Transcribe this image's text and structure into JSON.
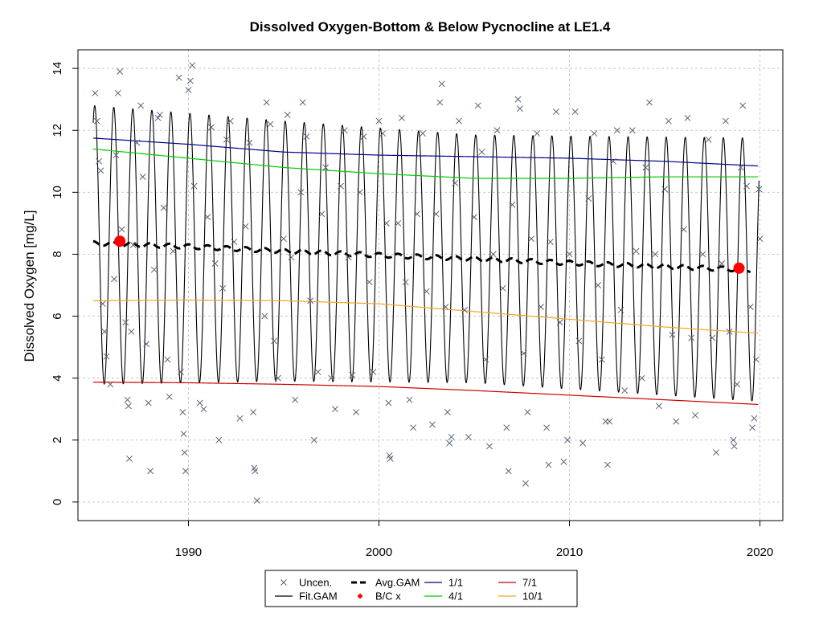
{
  "chart_data": {
    "type": "line",
    "title": "Dissolved Oxygen-Bottom & Below Pycnocline at LE1.4",
    "xlabel": "",
    "ylabel": "Dissolved Oxygen [mg/L]",
    "xlim": [
      1984.2,
      2021.2
    ],
    "ylim": [
      -0.6,
      14.6
    ],
    "x_ticks": [
      1990,
      2000,
      2010,
      2020
    ],
    "y_ticks": [
      0,
      2,
      4,
      6,
      8,
      10,
      12,
      14
    ],
    "grid": true,
    "legend_position": "bottom-center",
    "legend": [
      {
        "label": "Uncen.",
        "symbol": "x",
        "color": "#5a6478"
      },
      {
        "label": "Fit.GAM",
        "symbol": "line",
        "color": "#000000"
      },
      {
        "label": "Avg.GAM",
        "symbol": "dashed-line",
        "color": "#000000"
      },
      {
        "label": "B/C x",
        "symbol": "diamond",
        "color": "#ff0000"
      },
      {
        "label": "1/1",
        "symbol": "line",
        "color": "#00008b"
      },
      {
        "label": "4/1",
        "symbol": "line",
        "color": "#00cc00"
      },
      {
        "label": "7/1",
        "symbol": "line",
        "color": "#cc0000"
      },
      {
        "label": "10/1",
        "symbol": "line",
        "color": "#f5a623"
      }
    ],
    "series": [
      {
        "name": "1/1",
        "color": "#00008b",
        "x": [
          1985,
          1990,
          1995,
          2000,
          2005,
          2010,
          2015,
          2019.9
        ],
        "values": [
          11.75,
          11.55,
          11.3,
          11.2,
          11.15,
          11.1,
          11.0,
          10.85
        ]
      },
      {
        "name": "4/1",
        "color": "#00cc00",
        "x": [
          1985,
          1990,
          1995,
          2000,
          2005,
          2010,
          2015,
          2019.9
        ],
        "values": [
          11.4,
          11.1,
          10.8,
          10.6,
          10.45,
          10.45,
          10.5,
          10.5
        ]
      },
      {
        "name": "7/1",
        "color": "#cc0000",
        "x": [
          1985,
          1990,
          1995,
          2000,
          2005,
          2010,
          2015,
          2019.9
        ],
        "values": [
          3.87,
          3.85,
          3.8,
          3.73,
          3.6,
          3.45,
          3.3,
          3.15
        ]
      },
      {
        "name": "10/1",
        "color": "#f5a623",
        "x": [
          1985,
          1990,
          1995,
          2000,
          2005,
          2010,
          2015,
          2019.9
        ],
        "values": [
          6.5,
          6.52,
          6.5,
          6.4,
          6.15,
          5.9,
          5.65,
          5.45
        ]
      },
      {
        "name": "Avg.GAM",
        "color": "#000000",
        "x": [
          1985,
          1990,
          1995,
          2000,
          2005,
          2010,
          2015,
          2019.5
        ],
        "values": [
          8.35,
          8.25,
          8.1,
          7.97,
          7.85,
          7.72,
          7.6,
          7.5
        ]
      }
    ],
    "fit_gam": {
      "name": "Fit.GAM",
      "x_start": 1985.0,
      "x_end": 2019.95,
      "mean": [
        [
          1985,
          8.3
        ],
        [
          1995,
          8.1
        ],
        [
          2005,
          7.85
        ],
        [
          2019.95,
          7.5
        ]
      ],
      "amplitude": [
        [
          1985,
          4.5
        ],
        [
          1995,
          4.2
        ],
        [
          2005,
          4.0
        ],
        [
          2019.95,
          4.25
        ]
      ],
      "peak_phase": 0.08
    },
    "bc_points": [
      {
        "x": 1986.4,
        "y": 8.42
      },
      {
        "x": 2018.9,
        "y": 7.55
      }
    ],
    "observations": {
      "name": "Uncen.",
      "points": [
        [
          1985.1,
          13.2
        ],
        [
          1985.2,
          12.3
        ],
        [
          1985.3,
          11.0
        ],
        [
          1985.4,
          10.7
        ],
        [
          1985.5,
          6.4
        ],
        [
          1985.6,
          5.5
        ],
        [
          1985.7,
          4.7
        ],
        [
          1985.9,
          3.8
        ],
        [
          1986.1,
          7.2
        ],
        [
          1986.2,
          11.2
        ],
        [
          1986.3,
          13.2
        ],
        [
          1986.4,
          13.9
        ],
        [
          1986.5,
          8.8
        ],
        [
          1986.7,
          5.8
        ],
        [
          1986.8,
          3.3
        ],
        [
          1986.85,
          3.1
        ],
        [
          1986.9,
          1.4
        ],
        [
          1987.0,
          5.5
        ],
        [
          1987.1,
          8.3
        ],
        [
          1987.3,
          11.6
        ],
        [
          1987.5,
          12.8
        ],
        [
          1987.6,
          10.5
        ],
        [
          1987.8,
          5.1
        ],
        [
          1987.9,
          3.2
        ],
        [
          1988.0,
          1.0
        ],
        [
          1988.2,
          7.5
        ],
        [
          1988.4,
          12.4
        ],
        [
          1988.5,
          12.5
        ],
        [
          1988.7,
          9.5
        ],
        [
          1988.9,
          4.6
        ],
        [
          1989.0,
          3.4
        ],
        [
          1989.2,
          8.1
        ],
        [
          1989.5,
          13.7
        ],
        [
          1989.6,
          4.2
        ],
        [
          1989.7,
          2.9
        ],
        [
          1989.75,
          2.2
        ],
        [
          1989.8,
          1.6
        ],
        [
          1989.85,
          1.0
        ],
        [
          1990.0,
          13.3
        ],
        [
          1990.1,
          13.6
        ],
        [
          1990.2,
          14.1
        ],
        [
          1990.3,
          10.2
        ],
        [
          1990.6,
          3.2
        ],
        [
          1990.8,
          3.0
        ],
        [
          1991.0,
          9.2
        ],
        [
          1991.2,
          12.1
        ],
        [
          1991.4,
          7.7
        ],
        [
          1991.6,
          2.0
        ],
        [
          1991.8,
          6.9
        ],
        [
          1992.0,
          11.7
        ],
        [
          1992.2,
          12.3
        ],
        [
          1992.4,
          8.4
        ],
        [
          1992.7,
          2.7
        ],
        [
          1993.0,
          8.9
        ],
        [
          1993.2,
          11.6
        ],
        [
          1993.4,
          2.9
        ],
        [
          1993.45,
          1.1
        ],
        [
          1993.5,
          1.0
        ],
        [
          1993.6,
          0.05
        ],
        [
          1994.0,
          6.0
        ],
        [
          1994.1,
          12.9
        ],
        [
          1994.3,
          12.2
        ],
        [
          1994.5,
          5.2
        ],
        [
          1994.7,
          4.0
        ],
        [
          1995.0,
          8.5
        ],
        [
          1995.2,
          12.5
        ],
        [
          1995.4,
          7.9
        ],
        [
          1995.6,
          3.3
        ],
        [
          1995.9,
          10.0
        ],
        [
          1996.0,
          12.9
        ],
        [
          1996.2,
          11.8
        ],
        [
          1996.4,
          6.5
        ],
        [
          1996.6,
          2.0
        ],
        [
          1996.8,
          4.2
        ],
        [
          1997.0,
          9.3
        ],
        [
          1997.2,
          10.8
        ],
        [
          1997.5,
          4.0
        ],
        [
          1997.7,
          3.0
        ],
        [
          1998.0,
          10.2
        ],
        [
          1998.2,
          12.0
        ],
        [
          1998.4,
          7.9
        ],
        [
          1998.6,
          4.1
        ],
        [
          1998.8,
          2.9
        ],
        [
          1999.0,
          10.0
        ],
        [
          1999.2,
          11.8
        ],
        [
          1999.5,
          7.1
        ],
        [
          1999.7,
          4.2
        ],
        [
          2000.0,
          12.3
        ],
        [
          2000.2,
          11.9
        ],
        [
          2000.4,
          9.0
        ],
        [
          2000.5,
          3.2
        ],
        [
          2000.55,
          1.5
        ],
        [
          2000.6,
          1.4
        ],
        [
          2001.0,
          9.0
        ],
        [
          2001.2,
          12.4
        ],
        [
          2001.4,
          7.1
        ],
        [
          2001.6,
          3.3
        ],
        [
          2001.8,
          2.4
        ],
        [
          2002.0,
          9.3
        ],
        [
          2002.3,
          11.9
        ],
        [
          2002.5,
          6.8
        ],
        [
          2002.8,
          2.5
        ],
        [
          2003.0,
          9.3
        ],
        [
          2003.2,
          12.9
        ],
        [
          2003.3,
          13.5
        ],
        [
          2003.5,
          6.3
        ],
        [
          2003.6,
          2.9
        ],
        [
          2003.7,
          1.9
        ],
        [
          2003.8,
          2.1
        ],
        [
          2004.0,
          10.3
        ],
        [
          2004.2,
          12.3
        ],
        [
          2004.5,
          6.2
        ],
        [
          2004.7,
          2.1
        ],
        [
          2005.0,
          9.2
        ],
        [
          2005.2,
          12.8
        ],
        [
          2005.4,
          11.3
        ],
        [
          2005.6,
          4.6
        ],
        [
          2005.8,
          1.8
        ],
        [
          2006.0,
          8.0
        ],
        [
          2006.2,
          12.0
        ],
        [
          2006.5,
          6.9
        ],
        [
          2006.7,
          2.4
        ],
        [
          2006.8,
          1.0
        ],
        [
          2007.0,
          9.6
        ],
        [
          2007.3,
          13.0
        ],
        [
          2007.4,
          12.7
        ],
        [
          2007.6,
          4.8
        ],
        [
          2007.7,
          0.6
        ],
        [
          2007.8,
          2.9
        ],
        [
          2008.0,
          8.5
        ],
        [
          2008.3,
          11.9
        ],
        [
          2008.5,
          6.3
        ],
        [
          2008.8,
          2.4
        ],
        [
          2008.9,
          1.2
        ],
        [
          2009.0,
          8.4
        ],
        [
          2009.3,
          12.6
        ],
        [
          2009.5,
          5.8
        ],
        [
          2009.7,
          1.3
        ],
        [
          2009.9,
          2.0
        ],
        [
          2010.0,
          8.0
        ],
        [
          2010.3,
          12.6
        ],
        [
          2010.5,
          5.2
        ],
        [
          2010.7,
          1.9
        ],
        [
          2011.0,
          9.8
        ],
        [
          2011.3,
          11.9
        ],
        [
          2011.5,
          7.0
        ],
        [
          2011.7,
          4.6
        ],
        [
          2011.9,
          2.6
        ],
        [
          2012.0,
          1.2
        ],
        [
          2012.1,
          2.6
        ],
        [
          2012.3,
          11.0
        ],
        [
          2012.5,
          12.0
        ],
        [
          2012.7,
          6.2
        ],
        [
          2012.9,
          3.6
        ],
        [
          2013.3,
          12.0
        ],
        [
          2013.5,
          8.1
        ],
        [
          2013.8,
          4.0
        ],
        [
          2014.0,
          10.8
        ],
        [
          2014.2,
          12.9
        ],
        [
          2014.5,
          8.0
        ],
        [
          2014.7,
          3.1
        ],
        [
          2015.0,
          10.1
        ],
        [
          2015.2,
          12.3
        ],
        [
          2015.4,
          5.4
        ],
        [
          2015.6,
          2.6
        ],
        [
          2016.0,
          8.8
        ],
        [
          2016.2,
          12.4
        ],
        [
          2016.4,
          5.3
        ],
        [
          2016.6,
          2.8
        ],
        [
          2017.0,
          8.0
        ],
        [
          2017.3,
          11.7
        ],
        [
          2017.5,
          5.3
        ],
        [
          2017.7,
          1.6
        ],
        [
          2018.0,
          7.7
        ],
        [
          2018.2,
          12.3
        ],
        [
          2018.4,
          5.5
        ],
        [
          2018.6,
          2.0
        ],
        [
          2018.65,
          1.8
        ],
        [
          2018.8,
          3.8
        ],
        [
          2019.0,
          10.8
        ],
        [
          2019.1,
          12.8
        ],
        [
          2019.3,
          10.2
        ],
        [
          2019.5,
          6.3
        ],
        [
          2019.6,
          2.4
        ],
        [
          2019.7,
          2.7
        ],
        [
          2019.8,
          4.6
        ],
        [
          2019.95,
          10.1
        ],
        [
          2020.0,
          8.5
        ]
      ]
    }
  }
}
